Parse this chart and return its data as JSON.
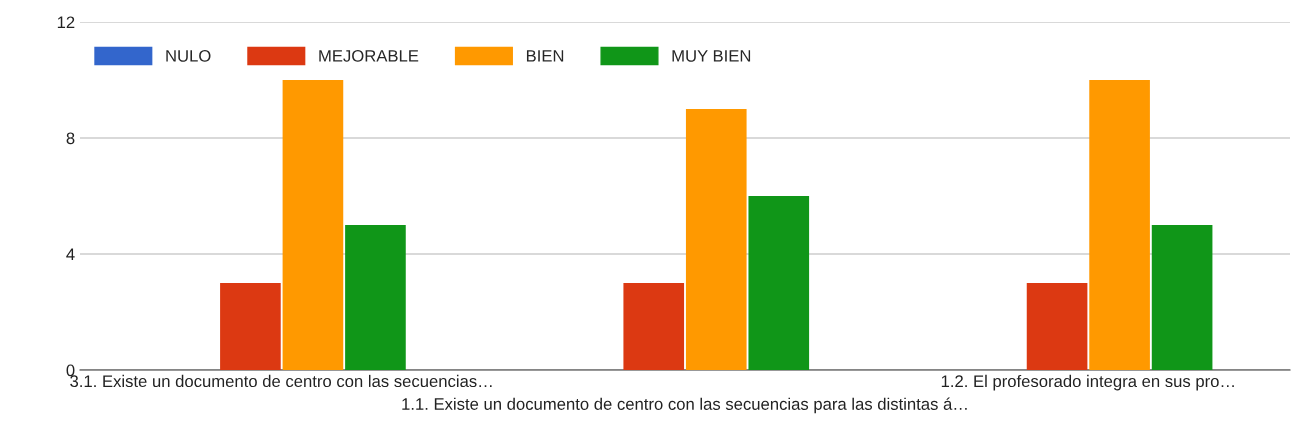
{
  "chart_data": {
    "type": "bar",
    "categories": [
      "3.1. Existe un documento de centro con las secuencias…",
      "1.1. Existe un documento de centro con las secuencias para las distintas á…",
      "1.2. El profesorado integra en sus pro…"
    ],
    "series": [
      {
        "name": "NULO",
        "color": "#3366cc",
        "values": [
          0,
          0,
          0
        ]
      },
      {
        "name": "MEJORABLE",
        "color": "#dc3912",
        "values": [
          3,
          3,
          3
        ]
      },
      {
        "name": "BIEN",
        "color": "#ff9900",
        "values": [
          10,
          9,
          10
        ]
      },
      {
        "name": "MUY BIEN",
        "color": "#109618",
        "values": [
          5,
          6,
          5
        ]
      }
    ],
    "ylim": [
      0,
      12
    ],
    "yticks": [
      0,
      4,
      8,
      12
    ],
    "grid": "y",
    "legend": "top left"
  }
}
